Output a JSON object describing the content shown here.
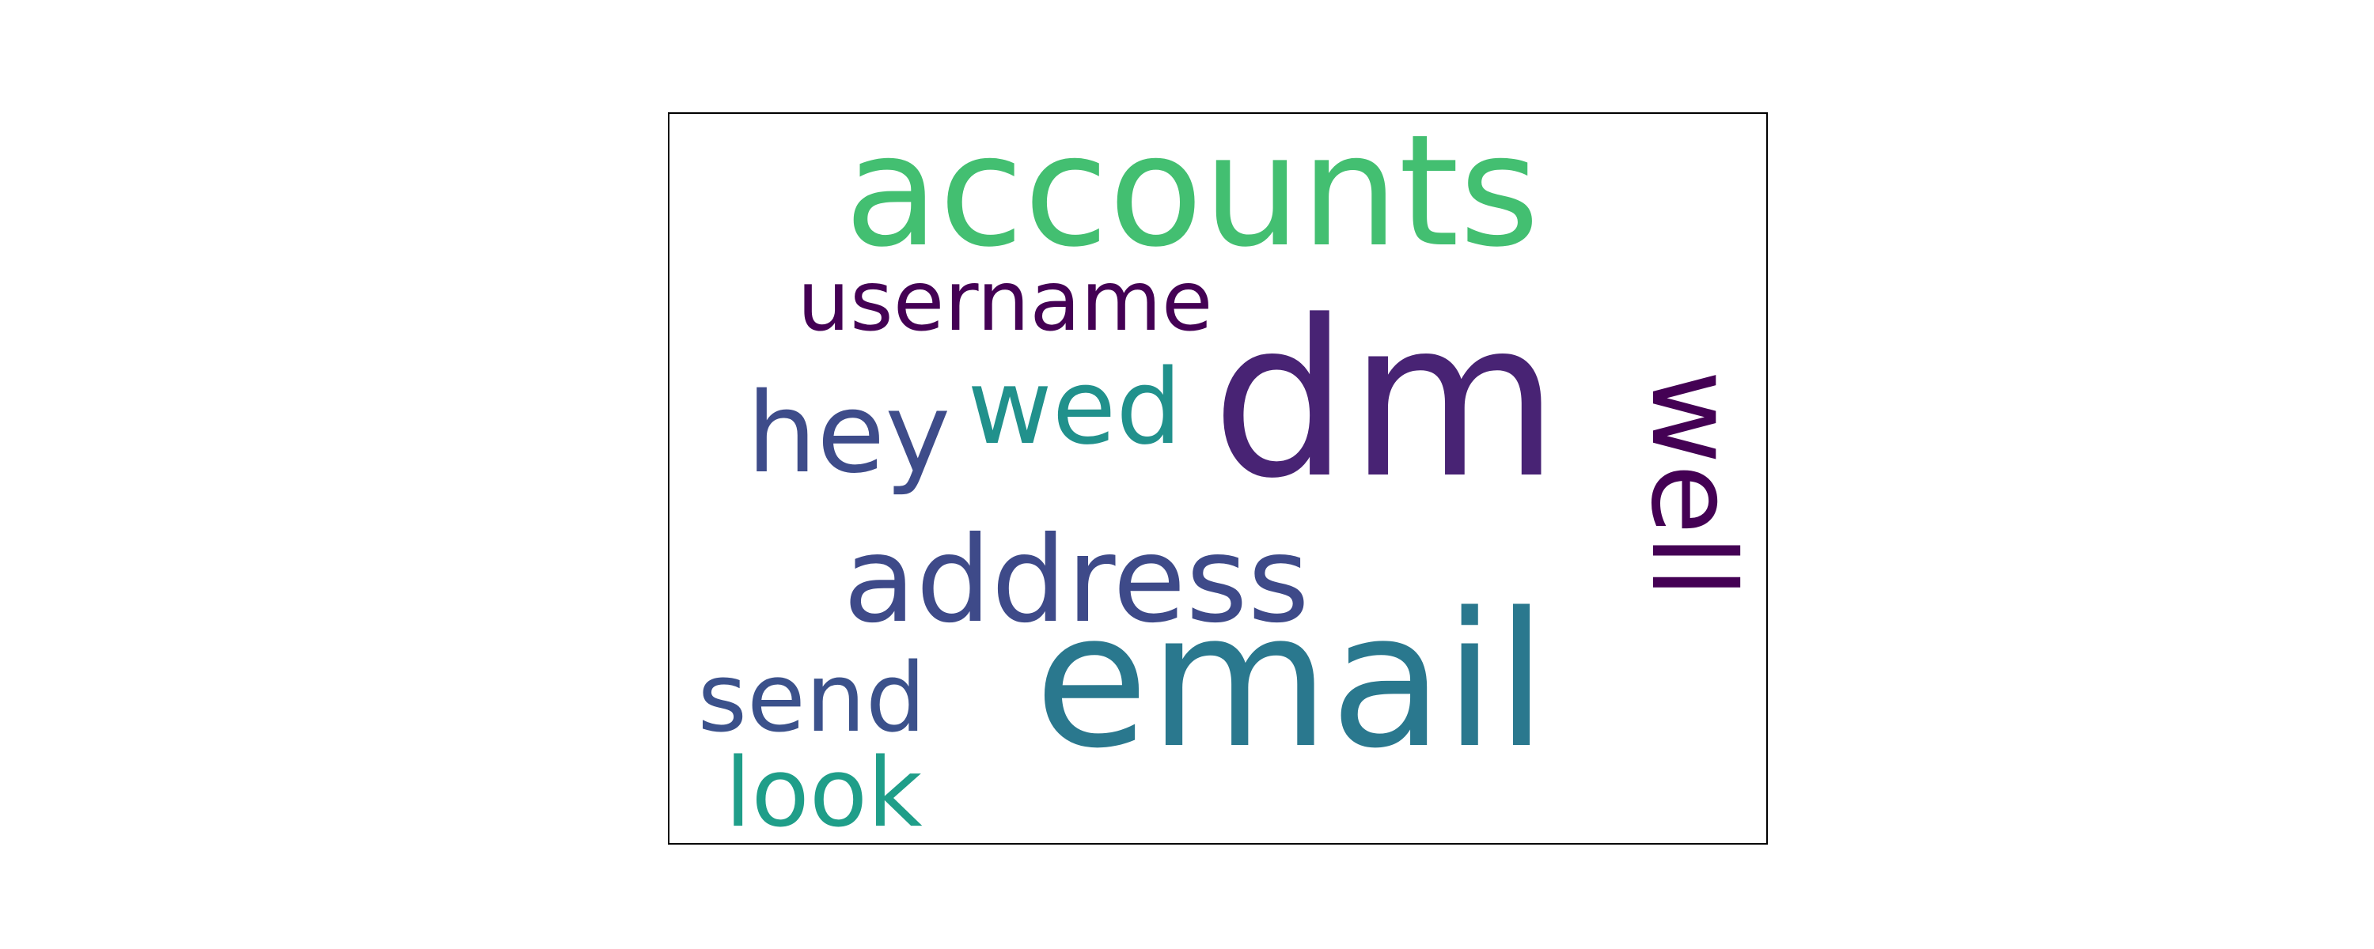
{
  "word_cloud": {
    "words": [
      {
        "key": "accounts",
        "text": "accounts",
        "color": "#43bf71"
      },
      {
        "key": "dm",
        "text": "dm",
        "color": "#482374"
      },
      {
        "key": "email",
        "text": "email",
        "color": "#2a788e"
      },
      {
        "key": "address",
        "text": "address",
        "color": "#3e4a89"
      },
      {
        "key": "username",
        "text": "username",
        "color": "#440154"
      },
      {
        "key": "well",
        "text": "well",
        "color": "#440154"
      },
      {
        "key": "hey",
        "text": "hey",
        "color": "#3e4c8a"
      },
      {
        "key": "wed",
        "text": "wed",
        "color": "#21918c"
      },
      {
        "key": "send",
        "text": "send",
        "color": "#3b518b"
      },
      {
        "key": "look",
        "text": "look",
        "color": "#1f9e89"
      }
    ]
  }
}
